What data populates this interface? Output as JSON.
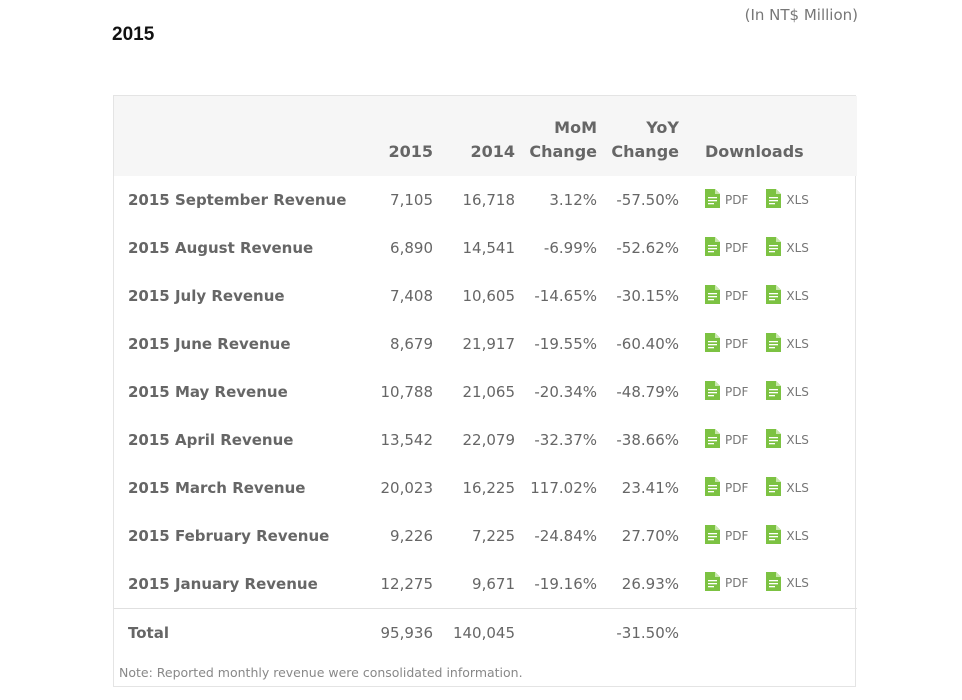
{
  "unit_note": "(In NT$ Million)",
  "year_heading": "2015",
  "table": {
    "headers": {
      "col_2015": "2015",
      "col_2014": "2014",
      "mom_line1": "MoM",
      "mom_line2": "Change",
      "yoy_line1": "YoY",
      "yoy_line2": "Change",
      "downloads": "Downloads"
    },
    "rows": [
      {
        "label": "2015 September Revenue",
        "v2015": "7,105",
        "v2014": "16,718",
        "mom": "3.12%",
        "yoy": "-57.50%"
      },
      {
        "label": "2015 August Revenue",
        "v2015": "6,890",
        "v2014": "14,541",
        "mom": "-6.99%",
        "yoy": "-52.62%"
      },
      {
        "label": "2015 July Revenue",
        "v2015": "7,408",
        "v2014": "10,605",
        "mom": "-14.65%",
        "yoy": "-30.15%"
      },
      {
        "label": "2015 June Revenue",
        "v2015": "8,679",
        "v2014": "21,917",
        "mom": "-19.55%",
        "yoy": "-60.40%"
      },
      {
        "label": "2015 May Revenue",
        "v2015": "10,788",
        "v2014": "21,065",
        "mom": "-20.34%",
        "yoy": "-48.79%"
      },
      {
        "label": "2015 April Revenue",
        "v2015": "13,542",
        "v2014": "22,079",
        "mom": "-32.37%",
        "yoy": "-38.66%"
      },
      {
        "label": "2015 March Revenue",
        "v2015": "20,023",
        "v2014": "16,225",
        "mom": "117.02%",
        "yoy": "23.41%"
      },
      {
        "label": "2015 February Revenue",
        "v2015": "9,226",
        "v2014": "7,225",
        "mom": "-24.84%",
        "yoy": "27.70%"
      },
      {
        "label": "2015 January Revenue",
        "v2015": "12,275",
        "v2014": "9,671",
        "mom": "-19.16%",
        "yoy": "26.93%"
      }
    ],
    "total": {
      "label": "Total",
      "v2015": "95,936",
      "v2014": "140,045",
      "mom": "",
      "yoy": "-31.50%"
    }
  },
  "downloads": {
    "pdf_label": "PDF",
    "xls_label": "XLS",
    "icon_name": "file-icon",
    "icon_color": "#7cc242"
  },
  "footnote": "Note: Reported monthly revenue were consolidated information."
}
